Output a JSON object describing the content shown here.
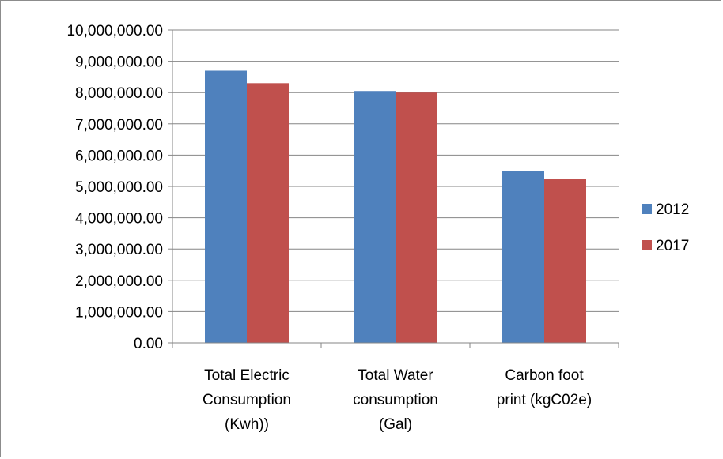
{
  "chart_data": {
    "type": "bar",
    "title": "",
    "xlabel": "",
    "ylabel": "",
    "ylim": [
      0,
      10000000
    ],
    "y_ticks": [
      0,
      1000000,
      2000000,
      3000000,
      4000000,
      5000000,
      6000000,
      7000000,
      8000000,
      9000000,
      10000000
    ],
    "y_tick_labels": [
      "0.00",
      "1,000,000.00",
      "2,000,000.00",
      "3,000,000.00",
      "4,000,000.00",
      "5,000,000.00",
      "6,000,000.00",
      "7,000,000.00",
      "8,000,000.00",
      "9,000,000.00",
      "10,000,000.00"
    ],
    "categories": [
      [
        "Total Electric",
        "Consumption",
        "(Kwh))"
      ],
      [
        "Total Water",
        "consumption",
        "(Gal)"
      ],
      [
        "Carbon foot",
        "print  (kgC02e)"
      ]
    ],
    "series": [
      {
        "name": "2012",
        "color": "#4f81bd",
        "values": [
          8700000,
          8050000,
          5500000
        ]
      },
      {
        "name": "2017",
        "color": "#c0504d",
        "values": [
          8300000,
          8000000,
          5250000
        ]
      }
    ],
    "grid": true,
    "legend": "right"
  }
}
